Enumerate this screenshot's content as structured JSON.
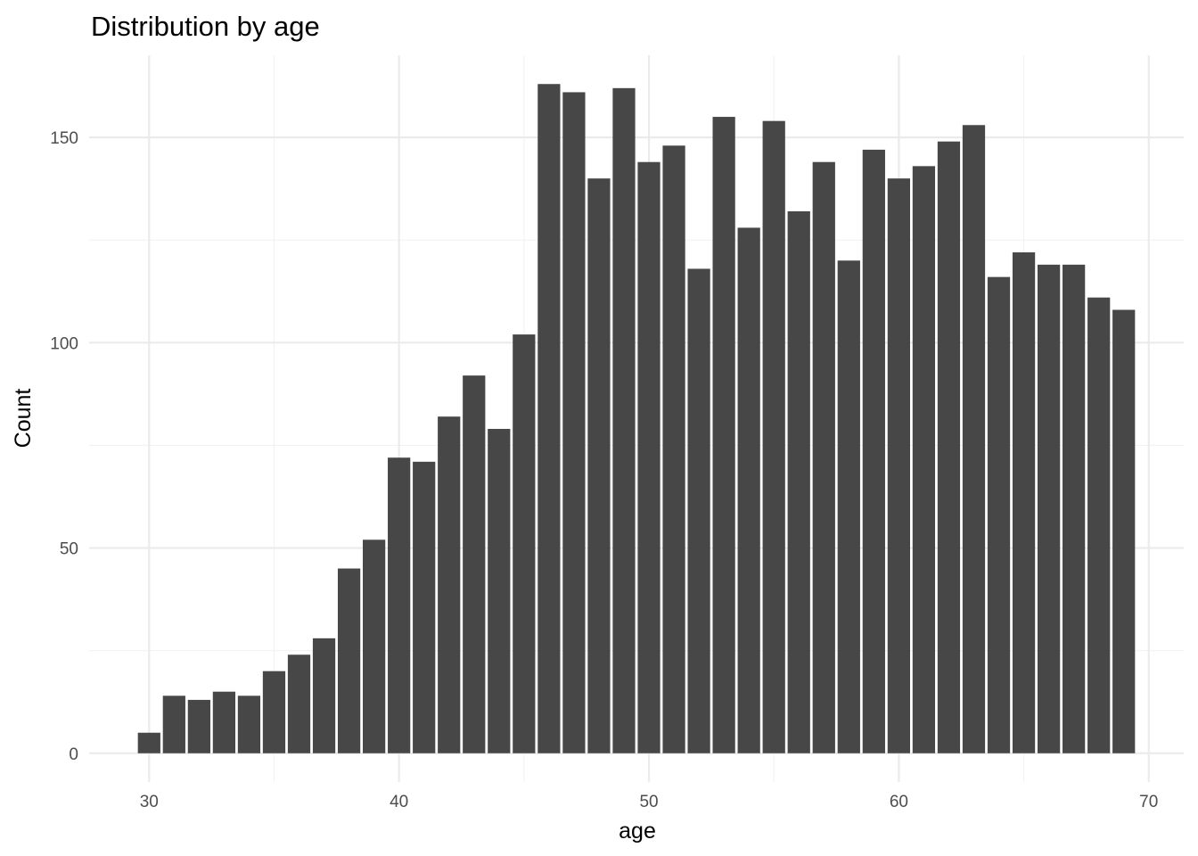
{
  "chart_data": {
    "type": "bar",
    "title": "Distribution by age",
    "xlabel": "age",
    "ylabel": "Count",
    "x": [
      30,
      31,
      32,
      33,
      34,
      35,
      36,
      37,
      38,
      39,
      40,
      41,
      42,
      43,
      44,
      45,
      46,
      47,
      48,
      49,
      50,
      51,
      52,
      53,
      54,
      55,
      56,
      57,
      58,
      59,
      60,
      61,
      62,
      63,
      64,
      65,
      66,
      67,
      68,
      69
    ],
    "values": [
      5,
      14,
      13,
      15,
      14,
      20,
      24,
      28,
      45,
      52,
      72,
      71,
      82,
      92,
      79,
      102,
      163,
      161,
      140,
      162,
      144,
      148,
      118,
      155,
      128,
      154,
      132,
      144,
      120,
      147,
      140,
      143,
      149,
      153,
      116,
      122,
      119,
      119,
      111,
      108
    ],
    "xlim": [
      27.6,
      71.4
    ],
    "ylim": [
      -7,
      170
    ],
    "x_ticks": [
      30,
      40,
      50,
      60,
      70
    ],
    "x_tick_labels": [
      "30",
      "40",
      "50",
      "60",
      "70"
    ],
    "y_ticks": [
      0,
      50,
      100,
      150
    ],
    "y_tick_labels": [
      "0",
      "50",
      "100",
      "150"
    ],
    "grid": true,
    "bar_color": "#474747",
    "legend": "none"
  }
}
